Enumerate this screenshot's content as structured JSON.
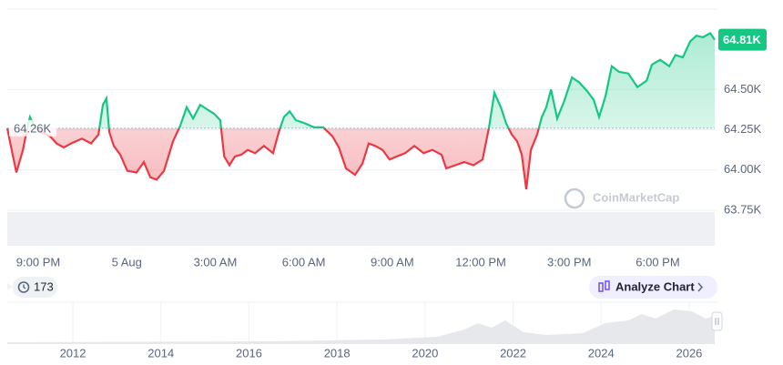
{
  "chart_data": {
    "type": "line",
    "x": [
      19.95,
      20.07,
      20.26,
      20.48,
      20.63,
      20.72,
      20.88,
      21.09,
      21.4,
      21.62,
      21.86,
      22.17,
      22.48,
      22.79,
      23.04,
      23.19,
      23.31,
      23.41,
      23.56,
      23.78,
      24.02,
      24.33,
      24.58,
      24.8,
      25.01,
      25.26,
      25.57,
      25.81,
      26.03,
      26.25,
      26.49,
      26.74,
      26.96,
      27.17,
      27.3,
      27.48,
      27.67,
      27.88,
      28.1,
      28.35,
      28.65,
      28.96,
      29.15,
      29.33,
      29.52,
      29.73,
      30.04,
      30.35,
      30.66,
      30.97,
      31.19,
      31.43,
      31.74,
      31.99,
      32.2,
      32.42,
      32.67,
      32.91,
      33.16,
      33.44,
      33.75,
      34.06,
      34.36,
      34.67,
      34.83,
      35.14,
      35.44,
      35.75,
      36.06,
      36.28,
      36.46,
      36.68,
      36.86,
      37.05,
      37.23,
      37.39,
      37.54,
      37.7,
      37.91,
      38.07,
      38.22,
      38.38,
      38.59,
      38.84,
      39.09,
      39.33,
      39.61,
      39.83,
      40.01,
      40.23,
      40.44,
      40.69,
      41.0,
      41.31,
      41.62,
      41.8,
      42.08,
      42.39,
      42.6,
      42.85,
      43.1,
      43.31,
      43.53,
      43.78,
      43.93
    ],
    "values": [
      64260,
      64150,
      63985,
      64125,
      64265,
      64330,
      64265,
      64235,
      64210,
      64165,
      64140,
      64170,
      64195,
      64165,
      64220,
      64405,
      64445,
      64235,
      64150,
      64095,
      63995,
      63985,
      64050,
      63955,
      63940,
      63995,
      64180,
      64275,
      64390,
      64320,
      64405,
      64375,
      64350,
      64310,
      64085,
      64030,
      64085,
      64095,
      64125,
      64105,
      64150,
      64105,
      64235,
      64330,
      64365,
      64310,
      64290,
      64265,
      64265,
      64210,
      64140,
      64010,
      63970,
      64040,
      64165,
      64150,
      64125,
      64065,
      64085,
      64105,
      64150,
      64105,
      64125,
      64095,
      64010,
      64030,
      64050,
      64030,
      64065,
      64265,
      64480,
      64390,
      64290,
      64220,
      64180,
      64095,
      63880,
      64125,
      64220,
      64330,
      64390,
      64500,
      64320,
      64435,
      64575,
      64545,
      64490,
      64435,
      64330,
      64460,
      64645,
      64610,
      64600,
      64515,
      64555,
      64655,
      64685,
      64645,
      64715,
      64700,
      64800,
      64835,
      64825,
      64850,
      64810
    ],
    "colors": {
      "up": "#16c784",
      "down": "#ea3943"
    },
    "baseline": {
      "value": 64260,
      "label": "64.26K"
    },
    "last_label": "64.81K",
    "xlim": [
      19.95,
      43.93
    ],
    "xticks": [
      {
        "value": 21,
        "label": "9:00 PM"
      },
      {
        "value": 24,
        "label": "5 Aug"
      },
      {
        "value": 27,
        "label": "3:00 AM"
      },
      {
        "value": 30,
        "label": "6:00 AM"
      },
      {
        "value": 33,
        "label": "9:00 AM"
      },
      {
        "value": 36,
        "label": "12:00 PM"
      },
      {
        "value": 39,
        "label": "3:00 PM"
      },
      {
        "value": 42,
        "label": "6:00 PM"
      }
    ],
    "ylim": [
      63750,
      65000
    ],
    "yticks": [
      {
        "value": 63750,
        "label": "63.75K"
      },
      {
        "value": 64000,
        "label": "64.00K"
      },
      {
        "value": 64250,
        "label": "64.25K"
      },
      {
        "value": 64500,
        "label": "64.50K"
      }
    ],
    "grid": true,
    "watermark": "CoinMarketCap"
  },
  "badge": "173",
  "button": "Analyze Chart",
  "overview": {
    "xlim": [
      2010.51,
      2026.58
    ],
    "xticks": [
      2012,
      2014,
      2016,
      2018,
      2020,
      2022,
      2024,
      2026
    ]
  }
}
